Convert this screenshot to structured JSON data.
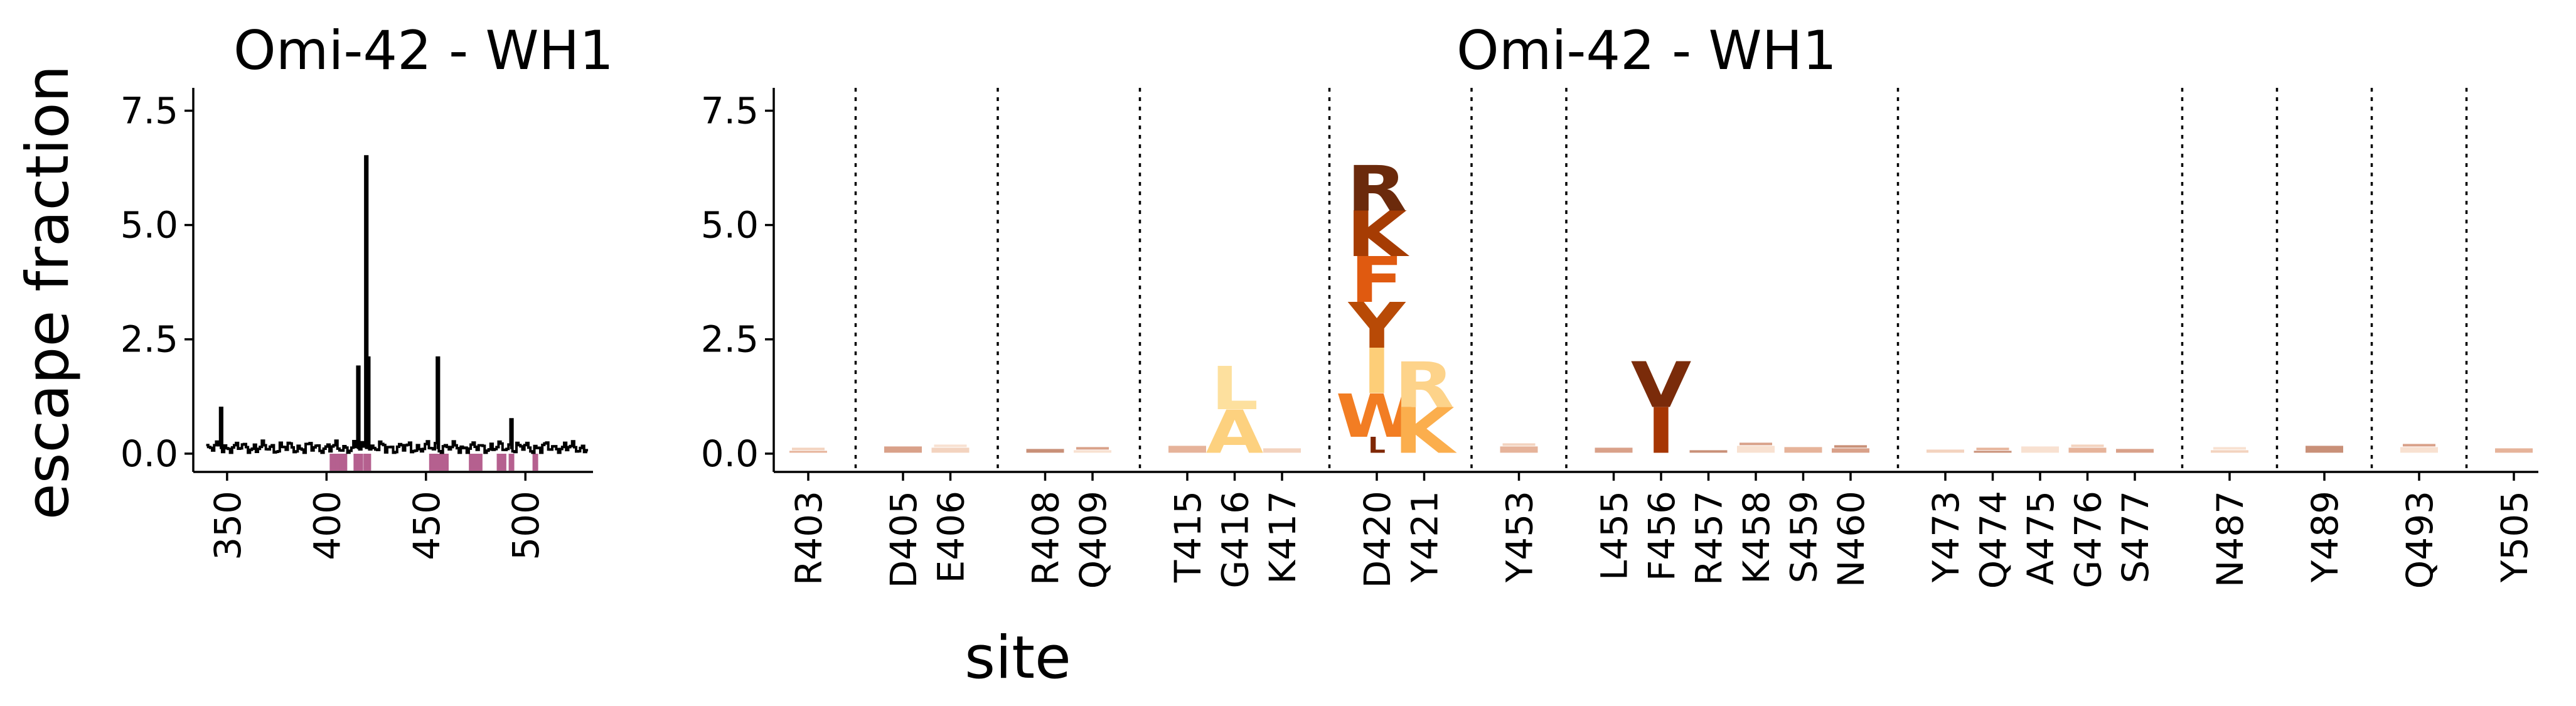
{
  "chart_data": [
    {
      "type": "line",
      "title": "Omi-42 - WH1",
      "ylabel": "escape fraction",
      "xlabel": "",
      "xlim": [
        333,
        534
      ],
      "ylim": [
        -0.4,
        8.0
      ],
      "xticks": [
        "350",
        "400",
        "450",
        "500"
      ],
      "yticks": [
        "0.0",
        "2.5",
        "5.0",
        "7.5"
      ],
      "line_color": "#000000",
      "highlight_color": "#b5608f",
      "spikes": [
        {
          "site": 347,
          "value": 1.0
        },
        {
          "site": 416,
          "value": 1.9
        },
        {
          "site": 420,
          "value": 6.5
        },
        {
          "site": 421,
          "value": 2.1
        },
        {
          "site": 456,
          "value": 2.1
        },
        {
          "site": 493,
          "value": 0.75
        }
      ],
      "highlighted_sites": [
        403,
        405,
        406,
        408,
        409,
        415,
        416,
        417,
        420,
        421,
        453,
        455,
        456,
        457,
        458,
        459,
        460,
        473,
        474,
        475,
        476,
        477,
        487,
        489,
        493,
        505
      ]
    },
    {
      "type": "logo",
      "title": "Omi-42 - WH1",
      "xlabel": "site",
      "ylabel": "",
      "ylim": [
        -0.4,
        8.0
      ],
      "yticks": [
        "0.0",
        "2.5",
        "5.0",
        "7.5"
      ],
      "categories": [
        "R403",
        "D405",
        "E406",
        "R408",
        "Q409",
        "T415",
        "G416",
        "K417",
        "D420",
        "Y421",
        "Y453",
        "L455",
        "F456",
        "R457",
        "K458",
        "S459",
        "N460",
        "Y473",
        "Q474",
        "A475",
        "G476",
        "S477",
        "N487",
        "Y489",
        "Q493",
        "Y505"
      ],
      "separators_after": [
        "R403",
        "E406",
        "Q409",
        "K417",
        "Y421",
        "Y453",
        "N460",
        "S477",
        "N487",
        "Y489",
        "Q493"
      ],
      "letters": [
        {
          "site": "G416",
          "letters": [
            {
              "aa": "A",
              "height": 0.95,
              "color": "#fdd17f"
            },
            {
              "aa": "L",
              "height": 0.95,
              "color": "#fde09e"
            }
          ]
        },
        {
          "site": "D420",
          "letters": [
            {
              "aa": "L",
              "height": 0.35,
              "color": "#7f2704"
            },
            {
              "aa": "W",
              "height": 0.95,
              "color": "#f27d23"
            },
            {
              "aa": "I",
              "height": 1.0,
              "color": "#fdce78"
            },
            {
              "aa": "Y",
              "height": 1.0,
              "color": "#b84a06"
            },
            {
              "aa": "F",
              "height": 1.0,
              "color": "#e05a10"
            },
            {
              "aa": "K",
              "height": 1.0,
              "color": "#a63c03"
            },
            {
              "aa": "R",
              "height": 1.0,
              "color": "#6b2a0c"
            }
          ]
        },
        {
          "site": "Y421",
          "letters": [
            {
              "aa": "K",
              "height": 1.0,
              "color": "#fbae4d"
            },
            {
              "aa": "R",
              "height": 1.0,
              "color": "#fdd38a"
            }
          ]
        },
        {
          "site": "F456",
          "letters": [
            {
              "aa": "I",
              "height": 1.0,
              "color": "#a63603"
            },
            {
              "aa": "V",
              "height": 1.0,
              "color": "#7a2b0a"
            }
          ]
        }
      ]
    }
  ]
}
